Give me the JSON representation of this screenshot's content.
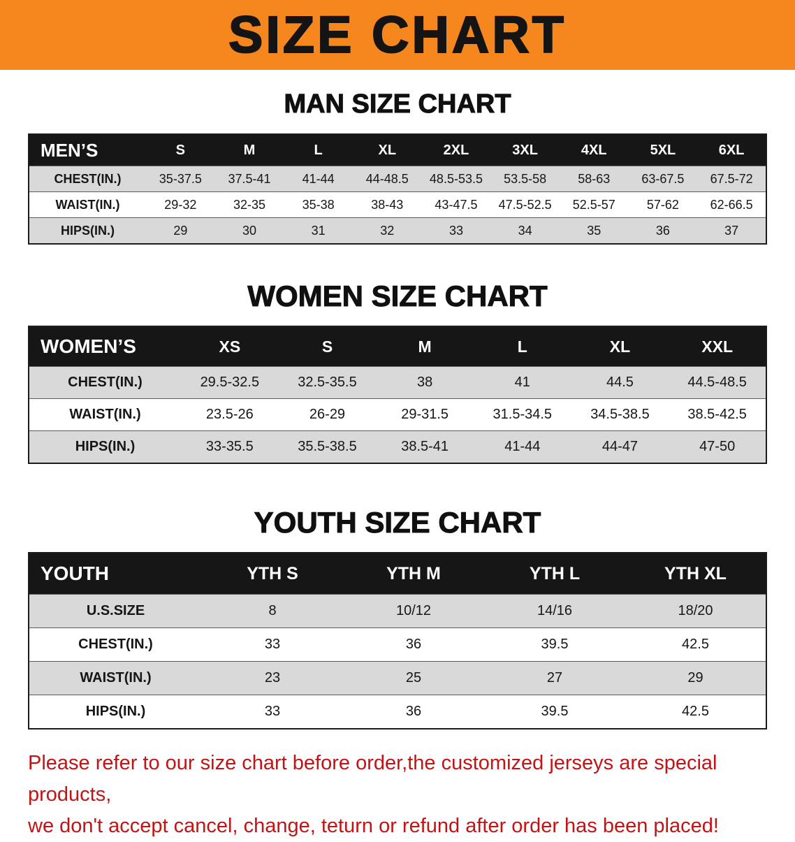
{
  "banner": {
    "title": "SIZE CHART"
  },
  "colors": {
    "banner_bg": "#f6871f",
    "table_header_bg": "#161616",
    "row_alt_gray": "#d9d9d9",
    "note_red": "#c21414"
  },
  "sections": [
    {
      "heading": "MAN SIZE CHART",
      "label": "MEN’S",
      "columns": [
        "S",
        "M",
        "L",
        "XL",
        "2XL",
        "3XL",
        "4XL",
        "5XL",
        "6XL"
      ],
      "rows": [
        {
          "label": "CHEST(IN.)",
          "values": [
            "35-37.5",
            "37.5-41",
            "41-44",
            "44-48.5",
            "48.5-53.5",
            "53.5-58",
            "58-63",
            "63-67.5",
            "67.5-72"
          ]
        },
        {
          "label": "WAIST(IN.)",
          "values": [
            "29-32",
            "32-35",
            "35-38",
            "38-43",
            "43-47.5",
            "47.5-52.5",
            "52.5-57",
            "57-62",
            "62-66.5"
          ]
        },
        {
          "label": "HIPS(IN.)",
          "values": [
            "29",
            "30",
            "31",
            "32",
            "33",
            "34",
            "35",
            "36",
            "37"
          ]
        }
      ]
    },
    {
      "heading": "WOMEN SIZE CHART",
      "label": "WOMEN’S",
      "columns": [
        "XS",
        "S",
        "M",
        "L",
        "XL",
        "XXL"
      ],
      "rows": [
        {
          "label": "CHEST(IN.)",
          "values": [
            "29.5-32.5",
            "32.5-35.5",
            "38",
            "41",
            "44.5",
            "44.5-48.5"
          ]
        },
        {
          "label": "WAIST(IN.)",
          "values": [
            "23.5-26",
            "26-29",
            "29-31.5",
            "31.5-34.5",
            "34.5-38.5",
            "38.5-42.5"
          ]
        },
        {
          "label": "HIPS(IN.)",
          "values": [
            "33-35.5",
            "35.5-38.5",
            "38.5-41",
            "41-44",
            "44-47",
            "47-50"
          ]
        }
      ]
    },
    {
      "heading": "YOUTH SIZE CHART",
      "label": "YOUTH",
      "columns": [
        "YTH S",
        "YTH M",
        "YTH L",
        "YTH XL"
      ],
      "rows": [
        {
          "label": "U.S.SIZE",
          "values": [
            "8",
            "10/12",
            "14/16",
            "18/20"
          ]
        },
        {
          "label": "CHEST(IN.)",
          "values": [
            "33",
            "36",
            "39.5",
            "42.5"
          ]
        },
        {
          "label": "WAIST(IN.)",
          "values": [
            "23",
            "25",
            "27",
            "29"
          ]
        },
        {
          "label": "HIPS(IN.)",
          "values": [
            "33",
            "36",
            "39.5",
            "42.5"
          ]
        }
      ]
    }
  ],
  "note": {
    "line1": "Please refer to our size chart before order,the customized jerseys are special products,",
    "line2": "we don't accept cancel, change, teturn or refund after order has been placed!"
  }
}
